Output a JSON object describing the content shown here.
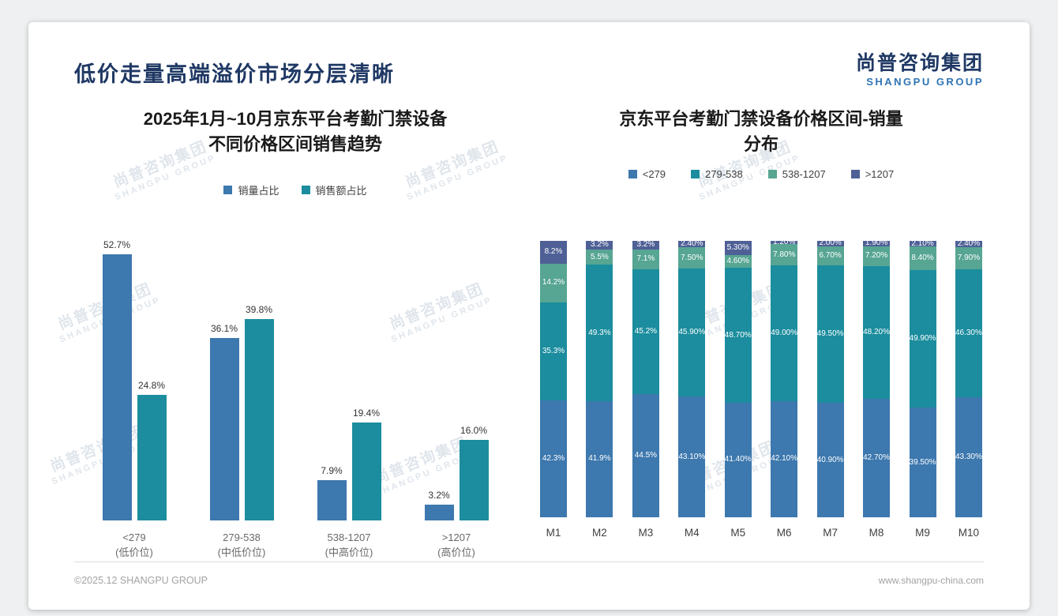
{
  "page": {
    "title": "低价走量高端溢价市场分层清晰",
    "logo": {
      "cn": "尚普咨询集团",
      "en": "SHANGPU GROUP"
    },
    "watermark": {
      "cn": "尚普咨询集团",
      "en": "SHANGPU GROUP"
    },
    "footer": {
      "copyright": "©2025.12 SHANGPU GROUP",
      "website": "www.shangpu-china.com"
    }
  },
  "colors": {
    "volume_blue": "#3d78ae",
    "revenue_teal": "#1b8d9e",
    "band_green": "#57a593",
    "band_navy": "#4f6096",
    "title_navy": "#1f3864"
  },
  "chart_data": [
    {
      "type": "bar",
      "title_line1": "2025年1月~10月京东平台考勤门禁设备",
      "title_line2": "不同价格区间销售趋势",
      "categories": [
        "<279",
        "279-538",
        "538-1207",
        ">1207"
      ],
      "category_sublabels": [
        "(低价位)",
        "(中低价位)",
        "(中高价位)",
        "(高价位)"
      ],
      "ylim": [
        0,
        60
      ],
      "grid": false,
      "legend_position": "top",
      "series": [
        {
          "name": "销量占比",
          "key": "volume-share",
          "color": "#3d78ae",
          "values": [
            52.7,
            36.1,
            7.9,
            3.2
          ],
          "labels": [
            "52.7%",
            "36.1%",
            "7.9%",
            "3.2%"
          ]
        },
        {
          "name": "销售额占比",
          "key": "revenue-share",
          "color": "#1b8d9e",
          "values": [
            24.8,
            39.8,
            19.4,
            16.0
          ],
          "labels": [
            "24.8%",
            "39.8%",
            "19.4%",
            "16.0%"
          ]
        }
      ]
    },
    {
      "type": "bar",
      "subtype": "stacked-100",
      "title_line1": "京东平台考勤门禁设备价格区间-销量",
      "title_line2": "分布",
      "categories": [
        "M1",
        "M2",
        "M3",
        "M4",
        "M5",
        "M6",
        "M7",
        "M8",
        "M9",
        "M10"
      ],
      "ylim": [
        0,
        100
      ],
      "grid": false,
      "legend_position": "top",
      "series": [
        {
          "name": "<279",
          "key": "under-279",
          "color": "#3d78ae",
          "values": [
            42.3,
            41.9,
            44.5,
            43.1,
            41.4,
            42.1,
            40.9,
            42.7,
            39.5,
            43.3
          ],
          "labels": [
            "42.3%",
            "41.9%",
            "44.5%",
            "43.10%",
            "41.40%",
            "42.10%",
            "40.90%",
            "42.70%",
            "39.50%",
            "43.30%"
          ]
        },
        {
          "name": "279-538",
          "key": "279-538",
          "color": "#1b8d9e",
          "values": [
            35.3,
            49.3,
            45.2,
            45.9,
            48.7,
            49.0,
            49.5,
            48.2,
            49.9,
            46.3
          ],
          "labels": [
            "35.3%",
            "49.3%",
            "45.2%",
            "45.90%",
            "48.70%",
            "49.00%",
            "49.50%",
            "48.20%",
            "49.90%",
            "46.30%"
          ]
        },
        {
          "name": "538-1207",
          "key": "538-1207",
          "color": "#57a593",
          "values": [
            14.2,
            5.5,
            7.1,
            7.5,
            4.6,
            7.8,
            6.7,
            7.2,
            8.4,
            7.9
          ],
          "labels": [
            "14.2%",
            "5.5%",
            "7.1%",
            "7.50%",
            "4.60%",
            "7.80%",
            "6.70%",
            "7.20%",
            "8.40%",
            "7.90%"
          ]
        },
        {
          "name": ">1207",
          "key": "over-1207",
          "color": "#4f6096",
          "values": [
            8.2,
            3.2,
            3.2,
            2.4,
            5.3,
            1.2,
            2.0,
            1.9,
            2.1,
            2.4
          ],
          "labels": [
            "8.2%",
            "3.2%",
            "3.2%",
            "2.40%",
            "5.30%",
            "1.20%",
            "2.00%",
            "1.90%",
            "2.10%",
            "2.40%"
          ]
        }
      ]
    }
  ]
}
